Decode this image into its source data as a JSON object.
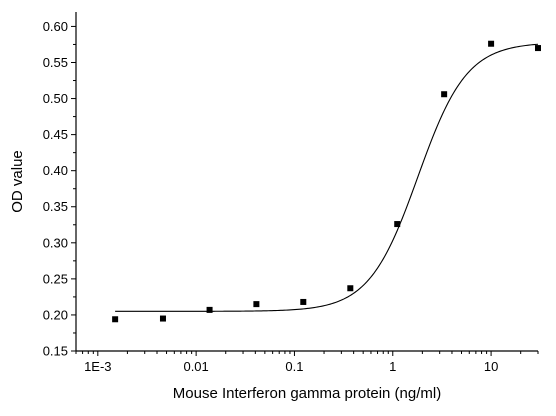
{
  "chart_data": {
    "type": "scatter",
    "xlabel": "Mouse Interferon gamma protein (ng/ml)",
    "ylabel": "OD value",
    "x_scale": "log",
    "xlim": [
      0.0006,
      30
    ],
    "ylim": [
      0.15,
      0.62
    ],
    "x_ticks": [
      {
        "value": 0.001,
        "label": "1E-3"
      },
      {
        "value": 0.01,
        "label": "0.01"
      },
      {
        "value": 0.1,
        "label": "0.1"
      },
      {
        "value": 1,
        "label": "1"
      },
      {
        "value": 10,
        "label": "10"
      }
    ],
    "y_ticks": [
      {
        "value": 0.15,
        "label": "0.15"
      },
      {
        "value": 0.2,
        "label": "0.20"
      },
      {
        "value": 0.25,
        "label": "0.25"
      },
      {
        "value": 0.3,
        "label": "0.30"
      },
      {
        "value": 0.35,
        "label": "0.35"
      },
      {
        "value": 0.4,
        "label": "0.40"
      },
      {
        "value": 0.45,
        "label": "0.45"
      },
      {
        "value": 0.5,
        "label": "0.50"
      },
      {
        "value": 0.55,
        "label": "0.55"
      },
      {
        "value": 0.6,
        "label": "0.60"
      }
    ],
    "grid": false,
    "legend": "none",
    "series": [
      {
        "marker": "square",
        "color": "#000000",
        "x": [
          0.0015,
          0.0046,
          0.0137,
          0.041,
          0.123,
          0.37,
          1.11,
          3.33,
          10,
          30
        ],
        "y": [
          0.194,
          0.195,
          0.207,
          0.215,
          0.218,
          0.237,
          0.326,
          0.506,
          0.576,
          0.57
        ]
      }
    ],
    "fit_curve": {
      "model": "4PL",
      "color": "#000000",
      "bottom": 0.205,
      "top": 0.578,
      "ec50": 1.8,
      "hill": 1.75,
      "x_range": [
        0.0015,
        30
      ]
    }
  }
}
